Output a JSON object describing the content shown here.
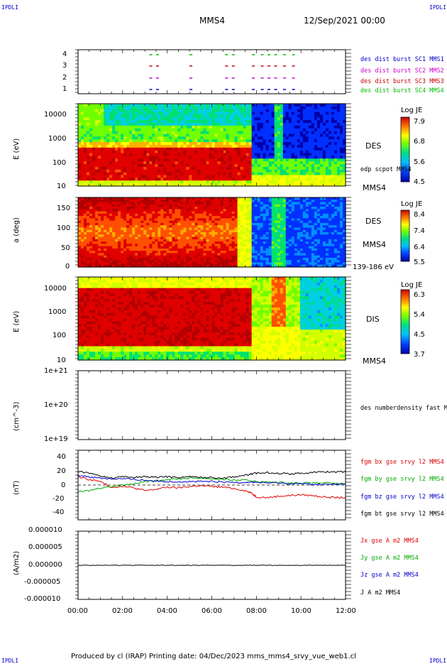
{
  "header": {
    "corner_left": "IPDLI",
    "corner_right": "IPDLI",
    "spacecraft": "MMS4",
    "datetime": "12/Sep/2021 00:00"
  },
  "footer": {
    "text": "Produced by cl (IRAP)   Printing date: 04/Dec/2023   mms_mms4_srvy_vue_web1.cl",
    "corner_left": "IPDLI",
    "corner_right": "IPDLI"
  },
  "colors": {
    "mms1": "#0000cc",
    "mms2": "#cc00cc",
    "mms3": "#cc0000",
    "mms4": "#00bb00",
    "bx": "#dd0000",
    "by": "#00aa00",
    "bz": "#0000cc",
    "bt": "#000000"
  },
  "chart_data": [
    {
      "type": "scatter",
      "id": "burst-availability",
      "y_ticks": [
        "4",
        "3",
        "2",
        "1"
      ],
      "legend": [
        {
          "label": "des dist burst SC1 MMS1",
          "color": "#0000cc"
        },
        {
          "label": "des dist burst SC2 MMS2",
          "color": "#cc00cc"
        },
        {
          "label": "des dist burst SC3 MMS3",
          "color": "#cc0000"
        },
        {
          "label": "des dist burst SC4 MMS4",
          "color": "#00bb00"
        }
      ],
      "burst_hours": [
        3.2,
        3.5,
        5.0,
        6.6,
        6.9,
        7.8,
        8.2,
        8.5,
        8.8,
        9.2,
        9.6
      ]
    },
    {
      "type": "heatmap",
      "id": "des-energy",
      "ylabel": "E (eV)",
      "y_ticks": [
        "10000",
        "1000",
        "100",
        "10"
      ],
      "label_right": "DES",
      "label_sub": "edp scpot MMS4",
      "label_bottom": "MMS4",
      "colorbar": {
        "title": "Log JE",
        "ticks": [
          "7.9",
          "6.8",
          "5.6",
          "4.5"
        ]
      }
    },
    {
      "type": "heatmap",
      "id": "des-pitch",
      "ylabel": "a (deg)",
      "y_ticks": [
        "150",
        "100",
        "50",
        "0"
      ],
      "label_right": "DES",
      "label_sub": "MMS4",
      "label_bottom": "139-186 eV",
      "colorbar": {
        "title": "Log JE",
        "ticks": [
          "8.4",
          "7.4",
          "6.4",
          "5.5"
        ]
      }
    },
    {
      "type": "heatmap",
      "id": "dis-energy",
      "ylabel": "E (eV)",
      "y_ticks": [
        "10000",
        "1000",
        "100",
        "10"
      ],
      "label_right": "DIS",
      "label_bottom": "MMS4",
      "colorbar": {
        "title": "Log JE",
        "ticks": [
          "6.3",
          "5.4",
          "4.5",
          "3.7"
        ]
      }
    },
    {
      "type": "line",
      "id": "density",
      "ylabel": "(cm^-3)",
      "y_ticks": [
        "1e+21",
        "1e+20",
        "1e+19"
      ],
      "legend": [
        {
          "label": "des numberdensity fast M",
          "color": "#000000"
        }
      ],
      "series": []
    },
    {
      "type": "line",
      "id": "magnetic-field",
      "ylabel": "(nT)",
      "y_ticks": [
        "40",
        "20",
        "0",
        "-20",
        "-40"
      ],
      "ylim": [
        -50,
        50
      ],
      "legend": [
        {
          "label": "fgm bx gse srvy l2 MMS4",
          "color": "#dd0000"
        },
        {
          "label": "fgm by gse srvy l2 MMS4",
          "color": "#00aa00"
        },
        {
          "label": "fgm bz gse srvy l2 MMS4",
          "color": "#0000cc"
        },
        {
          "label": "fgm bt gse srvy l2 MMS4",
          "color": "#000000"
        }
      ],
      "x": [
        0,
        0.5,
        1,
        1.5,
        2,
        2.5,
        3,
        3.5,
        4,
        4.5,
        5,
        5.5,
        6,
        6.5,
        7,
        7.5,
        7.8,
        8,
        8.5,
        9,
        9.5,
        10,
        10.5,
        11,
        11.5,
        12
      ],
      "series": [
        {
          "name": "bx",
          "color": "#dd0000",
          "values": [
            12,
            8,
            5,
            -3,
            -2,
            -4,
            -8,
            -6,
            -3,
            -4,
            -2,
            -1,
            -2,
            -3,
            -5,
            -8,
            -12,
            -17,
            -18,
            -16,
            -15,
            -14,
            -15,
            -17,
            -18,
            -18
          ]
        },
        {
          "name": "by",
          "color": "#00aa00",
          "values": [
            -10,
            -8,
            -4,
            -2,
            0,
            2,
            5,
            6,
            8,
            9,
            10,
            10,
            9,
            8,
            7,
            7,
            6,
            5,
            4,
            4,
            3,
            3,
            3,
            3,
            2,
            2
          ]
        },
        {
          "name": "bz",
          "color": "#0000cc",
          "values": [
            14,
            12,
            10,
            9,
            9,
            8,
            7,
            6,
            5,
            5,
            5,
            5,
            5,
            4,
            4,
            4,
            4,
            4,
            3,
            3,
            2,
            2,
            1,
            1,
            1,
            1
          ]
        },
        {
          "name": "bt",
          "color": "#000000",
          "values": [
            20,
            17,
            13,
            10,
            12,
            11,
            12,
            11,
            12,
            11,
            12,
            11,
            11,
            10,
            12,
            14,
            16,
            17,
            18,
            17,
            16,
            17,
            18,
            19,
            19,
            19
          ]
        }
      ]
    },
    {
      "type": "line",
      "id": "current-density",
      "ylabel": "(A/m2)",
      "y_ticks": [
        "0.000010",
        "0.000005",
        "0.000000",
        "-0.000005",
        "-0.000010"
      ],
      "legend": [
        {
          "label": "Jx gse A m2 MMS4",
          "color": "#dd0000"
        },
        {
          "label": "Jy gse A m2 MMS4",
          "color": "#00aa00"
        },
        {
          "label": "Jz gse A m2 MMS4",
          "color": "#0000cc"
        },
        {
          "label": "J A m2 MMS4",
          "color": "#000000"
        }
      ],
      "series": [
        {
          "name": "J",
          "color": "#000000",
          "values": [
            0,
            0
          ]
        }
      ]
    }
  ],
  "x_axis": {
    "ticks": [
      "00:00",
      "02:00",
      "04:00",
      "06:00",
      "08:00",
      "10:00",
      "12:00"
    ],
    "range_hours": [
      0,
      12
    ]
  }
}
